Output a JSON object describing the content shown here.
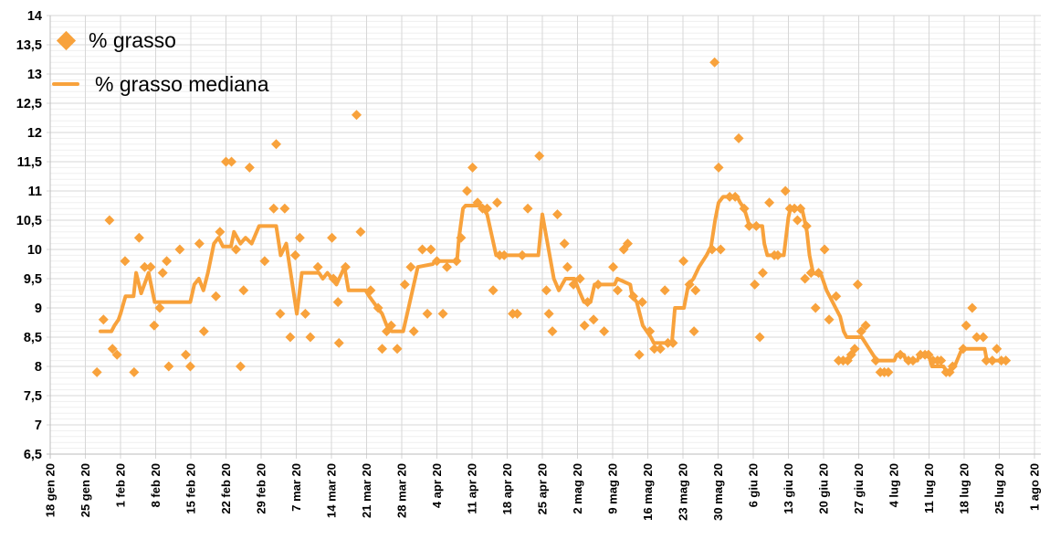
{
  "chart_data": {
    "type": "scatter",
    "title": "",
    "locale_note": "Italian locale, decimal comma",
    "x_axis": {
      "unit": "days since 18 gen 2020",
      "domain_days": [
        0,
        196
      ],
      "tick_interval_days": 7,
      "tick_labels": [
        "18 gen 20",
        "25 gen 20",
        "1 feb 20",
        "8 feb 20",
        "15 feb 20",
        "22 feb 20",
        "29 feb 20",
        "7 mar 20",
        "14 mar 20",
        "21 mar 20",
        "28 mar 20",
        "4 apr 20",
        "11 apr 20",
        "18 apr 20",
        "25 apr 20",
        "2 mag 20",
        "9 mag 20",
        "16 mag 20",
        "23 mag 20",
        "30 mag 20",
        "6 giu 20",
        "13 giu 20",
        "20 giu 20",
        "27 giu 20",
        "4 lug 20",
        "11 lug 20",
        "18 lug 20",
        "25 lug 20",
        "1 ago 20"
      ]
    },
    "y_axis": {
      "min": 6.5,
      "max": 14,
      "major_step": 0.5,
      "minor_step": 0.1,
      "tick_labels": [
        "14",
        "13,5",
        "13",
        "12,5",
        "12",
        "11,5",
        "11",
        "10,5",
        "10",
        "9,5",
        "9",
        "8,5",
        "8",
        "7,5",
        "7",
        "6,5"
      ]
    },
    "grid": {
      "minor_horizontal": true,
      "major_horizontal": true,
      "vertical_weekly": true
    },
    "legend_position": "top-left-overlay",
    "series": [
      {
        "name": "% grasso",
        "type": "scatter",
        "marker": "diamond",
        "color": "#F8A23C",
        "points": [
          [
            9.3,
            7.9
          ],
          [
            10.6,
            8.8
          ],
          [
            11.8,
            10.5
          ],
          [
            12.4,
            8.3
          ],
          [
            13.3,
            8.2
          ],
          [
            14.9,
            9.8
          ],
          [
            16.7,
            7.9
          ],
          [
            17.7,
            10.2
          ],
          [
            18.8,
            9.7
          ],
          [
            20,
            9.7
          ],
          [
            20.7,
            8.7
          ],
          [
            21.8,
            9.0
          ],
          [
            22.4,
            9.6
          ],
          [
            23.2,
            9.8
          ],
          [
            23.6,
            8.0
          ],
          [
            25.8,
            10.0
          ],
          [
            27,
            8.2
          ],
          [
            27.9,
            8.0
          ],
          [
            29.7,
            10.1
          ],
          [
            30.6,
            8.6
          ],
          [
            33,
            9.2
          ],
          [
            33.8,
            10.3
          ],
          [
            35,
            11.5
          ],
          [
            36.1,
            11.5
          ],
          [
            37,
            10.0
          ],
          [
            37.9,
            8.0
          ],
          [
            38.5,
            9.3
          ],
          [
            39.7,
            11.4
          ],
          [
            42.7,
            9.8
          ],
          [
            44.5,
            10.7
          ],
          [
            45,
            11.8
          ],
          [
            45.8,
            8.9
          ],
          [
            46.7,
            10.7
          ],
          [
            47.8,
            8.5
          ],
          [
            48.8,
            9.9
          ],
          [
            49.7,
            10.2
          ],
          [
            50.8,
            8.9
          ],
          [
            51.8,
            8.5
          ],
          [
            53.3,
            9.7
          ],
          [
            56.1,
            10.2
          ],
          [
            56.4,
            9.5
          ],
          [
            57.3,
            9.1
          ],
          [
            57.5,
            8.4
          ],
          [
            58.8,
            9.7
          ],
          [
            61,
            12.3
          ],
          [
            61.8,
            10.3
          ],
          [
            63.8,
            9.3
          ],
          [
            65.3,
            9.0
          ],
          [
            66.1,
            8.3
          ],
          [
            67,
            8.6
          ],
          [
            67.9,
            8.7
          ],
          [
            69.1,
            8.3
          ],
          [
            70.6,
            9.4
          ],
          [
            71.8,
            9.7
          ],
          [
            72.4,
            8.6
          ],
          [
            74.1,
            10.0
          ],
          [
            75.1,
            8.9
          ],
          [
            75.8,
            10.0
          ],
          [
            77,
            9.8
          ],
          [
            78.2,
            8.9
          ],
          [
            79,
            9.7
          ],
          [
            80.9,
            9.8
          ],
          [
            81.8,
            10.2
          ],
          [
            83,
            11.0
          ],
          [
            84.1,
            11.4
          ],
          [
            85.1,
            10.8
          ],
          [
            86.1,
            10.7
          ],
          [
            87,
            10.7
          ],
          [
            88.2,
            9.3
          ],
          [
            89,
            10.8
          ],
          [
            89.5,
            9.9
          ],
          [
            90.4,
            9.9
          ],
          [
            92.1,
            8.9
          ],
          [
            93,
            8.9
          ],
          [
            94,
            9.9
          ],
          [
            95.1,
            10.7
          ],
          [
            97.4,
            11.6
          ],
          [
            98.8,
            9.3
          ],
          [
            99.3,
            8.9
          ],
          [
            100,
            8.6
          ],
          [
            101,
            10.6
          ],
          [
            102.4,
            10.1
          ],
          [
            103,
            9.7
          ],
          [
            104.2,
            9.4
          ],
          [
            105.5,
            9.5
          ],
          [
            106.4,
            8.7
          ],
          [
            107,
            9.1
          ],
          [
            108.2,
            8.8
          ],
          [
            109.1,
            9.4
          ],
          [
            110.3,
            8.6
          ],
          [
            112.1,
            9.7
          ],
          [
            113,
            9.3
          ],
          [
            114.2,
            10.0
          ],
          [
            115,
            10.1
          ],
          [
            116.1,
            9.2
          ],
          [
            117.3,
            8.2
          ],
          [
            117.9,
            9.1
          ],
          [
            119.4,
            8.6
          ],
          [
            120.3,
            8.3
          ],
          [
            121.5,
            8.3
          ],
          [
            122.4,
            9.3
          ],
          [
            123,
            8.4
          ],
          [
            124,
            8.4
          ],
          [
            126.1,
            9.8
          ],
          [
            127.3,
            9.4
          ],
          [
            128.2,
            8.6
          ],
          [
            128.5,
            9.3
          ],
          [
            131.8,
            10.0
          ],
          [
            132.3,
            13.2
          ],
          [
            133.1,
            11.4
          ],
          [
            133.5,
            10.0
          ],
          [
            135.3,
            10.9
          ],
          [
            136.4,
            10.9
          ],
          [
            137.1,
            11.9
          ],
          [
            138.2,
            10.7
          ],
          [
            139.2,
            10.4
          ],
          [
            140.3,
            9.4
          ],
          [
            140.6,
            10.4
          ],
          [
            141.3,
            8.5
          ],
          [
            141.9,
            9.6
          ],
          [
            143.2,
            10.8
          ],
          [
            144.2,
            9.9
          ],
          [
            144.9,
            9.9
          ],
          [
            146.4,
            11.0
          ],
          [
            147.3,
            10.7
          ],
          [
            148.2,
            10.7
          ],
          [
            148.8,
            10.5
          ],
          [
            149.4,
            10.7
          ],
          [
            150.3,
            9.5
          ],
          [
            150.6,
            10.4
          ],
          [
            151.5,
            9.6
          ],
          [
            152.4,
            9.0
          ],
          [
            153,
            9.6
          ],
          [
            154.2,
            10.0
          ],
          [
            155.1,
            8.8
          ],
          [
            156.5,
            9.2
          ],
          [
            157,
            8.1
          ],
          [
            157.9,
            8.1
          ],
          [
            158.8,
            8.1
          ],
          [
            159.5,
            8.2
          ],
          [
            160.2,
            8.3
          ],
          [
            160.8,
            9.4
          ],
          [
            161.5,
            8.6
          ],
          [
            162.4,
            8.7
          ],
          [
            164.4,
            8.1
          ],
          [
            165.3,
            7.9
          ],
          [
            166.1,
            7.9
          ],
          [
            166.9,
            7.9
          ],
          [
            169.3,
            8.2
          ],
          [
            170.9,
            8.1
          ],
          [
            171.8,
            8.1
          ],
          [
            173.3,
            8.2
          ],
          [
            174.2,
            8.2
          ],
          [
            174.9,
            8.2
          ],
          [
            175.8,
            8.1
          ],
          [
            176.7,
            8.1
          ],
          [
            177.4,
            8.1
          ],
          [
            178.4,
            7.9
          ],
          [
            179.1,
            7.9
          ],
          [
            179.7,
            8.0
          ],
          [
            181.8,
            8.3
          ],
          [
            182.4,
            8.7
          ],
          [
            183.6,
            9.0
          ],
          [
            184.5,
            8.5
          ],
          [
            185.8,
            8.5
          ],
          [
            186.4,
            8.1
          ],
          [
            187.6,
            8.1
          ],
          [
            188.5,
            8.3
          ],
          [
            189.4,
            8.1
          ],
          [
            190.3,
            8.1
          ]
        ]
      },
      {
        "name": "% grasso mediana",
        "type": "line",
        "color": "#F8A23C",
        "stroke_width": 4,
        "points": [
          [
            10,
            8.6
          ],
          [
            12.2,
            8.6
          ],
          [
            12.8,
            8.7
          ],
          [
            13.6,
            8.8
          ],
          [
            14,
            8.9
          ],
          [
            15,
            9.2
          ],
          [
            16.6,
            9.2
          ],
          [
            17.1,
            9.6
          ],
          [
            18.1,
            9.25
          ],
          [
            19.6,
            9.6
          ],
          [
            20.8,
            9.1
          ],
          [
            25.2,
            9.1
          ],
          [
            27.9,
            9.1
          ],
          [
            28.7,
            9.4
          ],
          [
            29.6,
            9.5
          ],
          [
            30.5,
            9.3
          ],
          [
            31.4,
            9.6
          ],
          [
            32.6,
            10.1
          ],
          [
            33.5,
            10.2
          ],
          [
            34.4,
            10.05
          ],
          [
            36,
            10.05
          ],
          [
            36.6,
            10.3
          ],
          [
            37.9,
            10.1
          ],
          [
            38.9,
            10.2
          ],
          [
            40.1,
            10.1
          ],
          [
            41.6,
            10.4
          ],
          [
            45,
            10.4
          ],
          [
            45.9,
            9.9
          ],
          [
            47,
            10.1
          ],
          [
            49.1,
            8.9
          ],
          [
            50.1,
            9.6
          ],
          [
            53.5,
            9.6
          ],
          [
            54.3,
            9.5
          ],
          [
            55.2,
            9.6
          ],
          [
            56.1,
            9.5
          ],
          [
            57,
            9.4
          ],
          [
            58.6,
            9.7
          ],
          [
            59.4,
            9.3
          ],
          [
            60.3,
            9.3
          ],
          [
            62.8,
            9.3
          ],
          [
            63.5,
            9.2
          ],
          [
            65.2,
            9.0
          ],
          [
            66.1,
            8.9
          ],
          [
            67,
            8.7
          ],
          [
            68,
            8.6
          ],
          [
            70.3,
            8.6
          ],
          [
            73.2,
            9.7
          ],
          [
            76.2,
            9.75
          ],
          [
            76.6,
            9.8
          ],
          [
            81,
            9.8
          ],
          [
            81.4,
            10.2
          ],
          [
            82.2,
            10.7
          ],
          [
            82.7,
            10.75
          ],
          [
            85.8,
            10.75
          ],
          [
            87,
            10.6
          ],
          [
            88.8,
            9.9
          ],
          [
            97.2,
            9.9
          ],
          [
            98,
            10.6
          ],
          [
            100.3,
            9.5
          ],
          [
            101.3,
            9.3
          ],
          [
            102.6,
            9.5
          ],
          [
            104.4,
            9.5
          ],
          [
            105.3,
            9.3
          ],
          [
            106.3,
            9.1
          ],
          [
            107.6,
            9.1
          ],
          [
            108.4,
            9.4
          ],
          [
            112.4,
            9.4
          ],
          [
            112.9,
            9.5
          ],
          [
            115.5,
            9.4
          ],
          [
            115.9,
            9.2
          ],
          [
            116.8,
            9.1
          ],
          [
            118,
            8.7
          ],
          [
            119.6,
            8.5
          ],
          [
            120.2,
            8.4
          ],
          [
            123.8,
            8.4
          ],
          [
            124.4,
            9.0
          ],
          [
            126.2,
            9.0
          ],
          [
            127.1,
            9.4
          ],
          [
            128.1,
            9.5
          ],
          [
            129.2,
            9.7
          ],
          [
            130.7,
            9.9
          ],
          [
            131.6,
            10.05
          ],
          [
            132.4,
            10.5
          ],
          [
            133.1,
            10.8
          ],
          [
            134,
            10.9
          ],
          [
            136.8,
            10.9
          ],
          [
            137.4,
            10.8
          ],
          [
            138.2,
            10.7
          ],
          [
            138.9,
            10.5
          ],
          [
            139.2,
            10.4
          ],
          [
            141.8,
            10.4
          ],
          [
            142.2,
            10.1
          ],
          [
            142.8,
            9.9
          ],
          [
            146.1,
            9.9
          ],
          [
            147,
            10.55
          ],
          [
            147.4,
            10.7
          ],
          [
            149.7,
            10.7
          ],
          [
            150.1,
            10.55
          ],
          [
            150.7,
            10.3
          ],
          [
            151.2,
            9.9
          ],
          [
            151.9,
            9.6
          ],
          [
            153.6,
            9.55
          ],
          [
            154.6,
            9.3
          ],
          [
            155.5,
            9.15
          ],
          [
            156.4,
            9.0
          ],
          [
            157.3,
            8.85
          ],
          [
            158,
            8.6
          ],
          [
            158.6,
            8.5
          ],
          [
            161.6,
            8.5
          ],
          [
            163.1,
            8.3
          ],
          [
            164.6,
            8.1
          ],
          [
            168.1,
            8.1
          ],
          [
            168.6,
            8.2
          ],
          [
            170,
            8.2
          ],
          [
            170.4,
            8.1
          ],
          [
            172.7,
            8.1
          ],
          [
            173.1,
            8.2
          ],
          [
            174.9,
            8.2
          ],
          [
            175.6,
            8.0
          ],
          [
            177.9,
            8.0
          ],
          [
            178.5,
            7.9
          ],
          [
            180.1,
            8.0
          ],
          [
            181.3,
            8.25
          ],
          [
            182,
            8.3
          ],
          [
            186.1,
            8.3
          ],
          [
            186.5,
            8.1
          ],
          [
            190.3,
            8.1
          ]
        ]
      }
    ]
  },
  "colors": {
    "series_orange": "#F8A23C",
    "major_gridline": "#D7D7D7",
    "minor_gridline": "#EFEFEF",
    "axis_line": "#BDBDBD",
    "axis_label": "#000000",
    "background": "#FFFFFF"
  },
  "legend": {
    "items": [
      "% grasso",
      "% grasso mediana"
    ]
  }
}
